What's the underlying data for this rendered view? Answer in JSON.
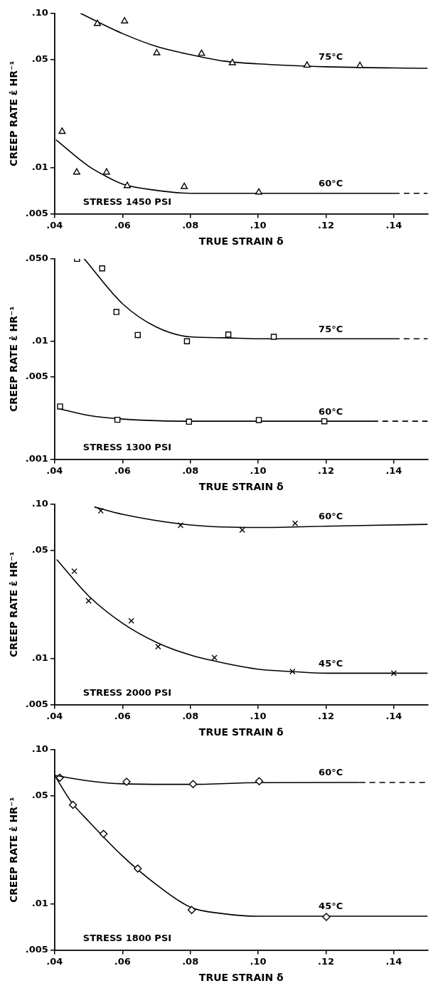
{
  "chart_data": [
    {
      "type": "scatter",
      "xlabel": "TRUE STRAIN δ",
      "ylabel": "CREEP RATE ε̇ HR⁻¹",
      "log": "y",
      "grid": false,
      "legend": false,
      "xlim": [
        0.04,
        0.15
      ],
      "xticks": [
        {
          "value": 0.04,
          "label": ".04"
        },
        {
          "value": 0.06,
          "label": ".06"
        },
        {
          "value": 0.08,
          "label": ".08"
        },
        {
          "value": 0.1,
          "label": ".10"
        },
        {
          "value": 0.12,
          "label": ".12"
        },
        {
          "value": 0.14,
          "label": ".14"
        }
      ],
      "ylim": [
        0.005,
        0.1
      ],
      "yticks": [
        {
          "value": 0.005,
          "label": ".005"
        },
        {
          "value": 0.01,
          "label": ".01"
        },
        {
          "value": 0.05,
          "label": ".05"
        },
        {
          "value": 0.1,
          "label": ".10"
        }
      ],
      "series": [
        {
          "type": "scatter",
          "marker": "triangle",
          "color": "#000000",
          "x": [
            0.0526,
            0.0606,
            0.0701,
            0.0833,
            0.0924,
            0.1144,
            0.13
          ],
          "values": [
            0.0857,
            0.089,
            0.0553,
            0.0548,
            0.0477,
            0.046,
            0.0457
          ]
        },
        {
          "type": "line",
          "name": "75°C",
          "line_style": "solid",
          "color": "#000000",
          "x": [
            0.0476,
            0.06,
            0.07,
            0.08,
            0.09,
            0.1,
            0.12,
            0.15
          ],
          "values": [
            0.1,
            0.074,
            0.061,
            0.054,
            0.049,
            0.047,
            0.045,
            0.044
          ]
        },
        {
          "type": "scatter",
          "marker": "triangle",
          "color": "#000000",
          "x": [
            0.0422,
            0.0465,
            0.0553,
            0.0614,
            0.0782,
            0.1002
          ],
          "values": [
            0.0171,
            0.0093,
            0.0093,
            0.0076,
            0.0075,
            0.0069
          ]
        },
        {
          "type": "line",
          "name": "60°C",
          "line_style": "solid",
          "color": "#000000",
          "x": [
            0.0404,
            0.05,
            0.055,
            0.06,
            0.07,
            0.08,
            0.1,
            0.14
          ],
          "values": [
            0.0151,
            0.0102,
            0.0088,
            0.0078,
            0.0071,
            0.0068,
            0.0068,
            0.0068
          ]
        },
        {
          "type": "line",
          "line_style": "dashed",
          "color": "#000000",
          "x": [
            0.14,
            0.15
          ],
          "values": [
            0.0068,
            0.0068
          ]
        }
      ],
      "annotations": [
        "STRESS 1450 PSI"
      ]
    },
    {
      "type": "scatter",
      "xlabel": "TRUE STRAIN δ",
      "ylabel": "CREEP RATE ε̇ HR⁻¹",
      "log": "y",
      "grid": false,
      "legend": false,
      "xlim": [
        0.04,
        0.15
      ],
      "xticks": [
        {
          "value": 0.04,
          "label": ".04"
        },
        {
          "value": 0.06,
          "label": ".06"
        },
        {
          "value": 0.08,
          "label": ".08"
        },
        {
          "value": 0.1,
          "label": ".10"
        },
        {
          "value": 0.12,
          "label": ".12"
        },
        {
          "value": 0.14,
          "label": ".14"
        }
      ],
      "ylim": [
        0.001,
        0.05
      ],
      "yticks": [
        {
          "value": 0.001,
          "label": ".001"
        },
        {
          "value": 0.005,
          "label": ".005"
        },
        {
          "value": 0.01,
          "label": ".01"
        },
        {
          "value": 0.05,
          "label": ".050"
        }
      ],
      "series": [
        {
          "type": "scatter",
          "marker": "square",
          "color": "#000000",
          "x": [
            0.0466,
            0.054,
            0.0582,
            0.0645,
            0.079,
            0.0912,
            0.1046
          ],
          "values": [
            0.05,
            0.0415,
            0.0177,
            0.0113,
            0.01,
            0.0114,
            0.0109
          ]
        },
        {
          "type": "line",
          "name": "75°C",
          "line_style": "solid",
          "color": "#000000",
          "x": [
            0.0487,
            0.06,
            0.07,
            0.08,
            0.09,
            0.1,
            0.14
          ],
          "values": [
            0.05,
            0.0208,
            0.0132,
            0.0109,
            0.0107,
            0.0105,
            0.0105
          ]
        },
        {
          "type": "line",
          "line_style": "dashed",
          "color": "#000000",
          "x": [
            0.14,
            0.15
          ],
          "values": [
            0.0105,
            0.0105
          ]
        },
        {
          "type": "scatter",
          "marker": "square",
          "color": "#000000",
          "x": [
            0.0416,
            0.0585,
            0.0796,
            0.1002,
            0.1195
          ],
          "values": [
            0.0028,
            0.00216,
            0.00208,
            0.00215,
            0.0021
          ]
        },
        {
          "type": "line",
          "name": "60°C",
          "line_style": "solid",
          "color": "#000000",
          "x": [
            0.0408,
            0.05,
            0.06,
            0.08,
            0.1,
            0.1337
          ],
          "values": [
            0.0027,
            0.00235,
            0.00219,
            0.0021,
            0.0021,
            0.0021
          ]
        },
        {
          "type": "line",
          "line_style": "dashed",
          "color": "#000000",
          "x": [
            0.1337,
            0.15
          ],
          "values": [
            0.0021,
            0.0021
          ]
        }
      ],
      "annotations": [
        "STRESS 1300 PSI"
      ]
    },
    {
      "type": "scatter",
      "xlabel": "TRUE STRAIN δ",
      "ylabel": "CREEP RATE ε̇ HR⁻¹",
      "log": "y",
      "grid": false,
      "legend": false,
      "xlim": [
        0.04,
        0.15
      ],
      "xticks": [
        {
          "value": 0.04,
          "label": ".04"
        },
        {
          "value": 0.06,
          "label": ".06"
        },
        {
          "value": 0.08,
          "label": ".08"
        },
        {
          "value": 0.1,
          "label": ".10"
        },
        {
          "value": 0.12,
          "label": ".12"
        },
        {
          "value": 0.14,
          "label": ".14"
        }
      ],
      "ylim": [
        0.005,
        0.1
      ],
      "yticks": [
        {
          "value": 0.005,
          "label": ".005"
        },
        {
          "value": 0.01,
          "label": ".01"
        },
        {
          "value": 0.05,
          "label": ".05"
        },
        {
          "value": 0.1,
          "label": ".10"
        }
      ],
      "series": [
        {
          "type": "scatter",
          "marker": "cross",
          "color": "#000000",
          "x": [
            0.0536,
            0.0771,
            0.0953,
            0.1109
          ],
          "values": [
            0.0906,
            0.073,
            0.068,
            0.0751
          ]
        },
        {
          "type": "line",
          "name": "60°C",
          "line_style": "solid",
          "color": "#000000",
          "x": [
            0.0517,
            0.06,
            0.08,
            0.1,
            0.12,
            0.15
          ],
          "values": [
            0.096,
            0.086,
            0.0733,
            0.0706,
            0.072,
            0.074
          ]
        },
        {
          "type": "scatter",
          "marker": "cross",
          "color": "#000000",
          "x": [
            0.0458,
            0.05,
            0.0626,
            0.0705,
            0.0871,
            0.1101,
            0.14
          ],
          "values": [
            0.0367,
            0.0236,
            0.0175,
            0.0119,
            0.0101,
            0.0082,
            0.008
          ]
        },
        {
          "type": "line",
          "name": "45°C",
          "line_style": "solid",
          "color": "#000000",
          "x": [
            0.0406,
            0.05,
            0.06,
            0.07,
            0.08,
            0.09,
            0.1,
            0.11,
            0.12,
            0.15
          ],
          "values": [
            0.0438,
            0.0254,
            0.0169,
            0.0127,
            0.0105,
            0.0093,
            0.0085,
            0.0082,
            0.008,
            0.008
          ]
        }
      ],
      "annotations": [
        "STRESS 2000 PSI"
      ]
    },
    {
      "type": "scatter",
      "xlabel": "TRUE STRAIN δ",
      "ylabel": "CREEP RATE ε̇ HR⁻¹",
      "log": "y",
      "grid": false,
      "legend": false,
      "xlim": [
        0.04,
        0.15
      ],
      "xticks": [
        {
          "value": 0.04,
          "label": ".04"
        },
        {
          "value": 0.06,
          "label": ".06"
        },
        {
          "value": 0.08,
          "label": ".08"
        },
        {
          "value": 0.1,
          "label": ".10"
        },
        {
          "value": 0.12,
          "label": ".12"
        },
        {
          "value": 0.14,
          "label": ".14"
        }
      ],
      "ylim": [
        0.005,
        0.1
      ],
      "yticks": [
        {
          "value": 0.005,
          "label": ".005"
        },
        {
          "value": 0.01,
          "label": ".01"
        },
        {
          "value": 0.05,
          "label": ".05"
        },
        {
          "value": 0.1,
          "label": ".10"
        }
      ],
      "series": [
        {
          "type": "scatter",
          "marker": "diamond",
          "color": "#000000",
          "x": [
            0.0612,
            0.0808,
            0.1003
          ],
          "values": [
            0.0618,
            0.0598,
            0.0624
          ]
        },
        {
          "type": "line",
          "name": "60°C",
          "line_style": "solid",
          "color": "#000000",
          "x": [
            0.04,
            0.05,
            0.06,
            0.08,
            0.1,
            0.1299
          ],
          "values": [
            0.068,
            0.0627,
            0.06,
            0.0595,
            0.061,
            0.0612
          ]
        },
        {
          "type": "line",
          "line_style": "dashed",
          "color": "#000000",
          "x": [
            0.1299,
            0.15
          ],
          "values": [
            0.0612,
            0.0612
          ]
        },
        {
          "type": "scatter",
          "marker": "diamond",
          "color": "#000000",
          "x": [
            0.0415,
            0.0454,
            0.0544,
            0.0645,
            0.0804,
            0.1201
          ],
          "values": [
            0.0658,
            0.0438,
            0.0284,
            0.0169,
            0.0091,
            0.0082
          ]
        },
        {
          "type": "line",
          "name": "45°C",
          "line_style": "solid",
          "color": "#000000",
          "x": [
            0.04,
            0.045,
            0.05,
            0.06,
            0.07,
            0.08,
            0.09,
            0.1,
            0.15
          ],
          "values": [
            0.068,
            0.0455,
            0.0343,
            0.0204,
            0.0133,
            0.0095,
            0.0086,
            0.0083,
            0.0083
          ]
        }
      ],
      "annotations": [
        "STRESS 1800 PSI"
      ]
    }
  ]
}
